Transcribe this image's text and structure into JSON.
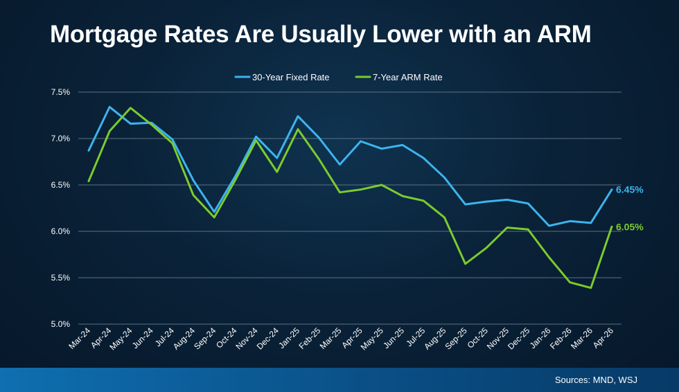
{
  "title": "Mortgage Rates Are Usually Lower with an ARM",
  "source": "Sources: MND, WSJ",
  "colors": {
    "fixed": "#3cb4ee",
    "arm": "#7ccb2d",
    "grid": "#5d7184",
    "text": "#ffffff"
  },
  "chart_data": {
    "type": "line",
    "title": "Mortgage Rates Are Usually Lower with an ARM",
    "xlabel": "",
    "ylabel": "",
    "ylim": [
      5.0,
      7.5
    ],
    "yticks": [
      "5.0%",
      "5.5%",
      "6.0%",
      "6.5%",
      "7.0%",
      "7.5%"
    ],
    "legend_position": "top-center",
    "grid": true,
    "categories": [
      "Mar-24",
      "Apr-24",
      "May-24",
      "Jun-24",
      "Jul-24",
      "Aug-24",
      "Sep-24",
      "Oct-24",
      "Nov-24",
      "Dec-24",
      "Jan-25",
      "Feb-25",
      "Mar-25",
      "Apr-25",
      "May-25",
      "Jun-25",
      "Jul-25",
      "Aug-25",
      "Sep-25",
      "Oct-25",
      "Nov-25",
      "Dec-25",
      "Jan-26",
      "Feb-26",
      "Mar-26",
      "Apr-26"
    ],
    "series": [
      {
        "name": "30-Year Fixed Rate",
        "color": "#3cb4ee",
        "end_label": "6.45%",
        "values": [
          6.87,
          7.34,
          7.16,
          7.17,
          6.99,
          6.55,
          6.21,
          6.59,
          7.02,
          6.79,
          7.24,
          7.01,
          6.72,
          6.97,
          6.89,
          6.93,
          6.79,
          6.58,
          6.29,
          6.32,
          6.34,
          6.3,
          6.06,
          6.11,
          6.09,
          6.45
        ]
      },
      {
        "name": "7-Year ARM Rate",
        "color": "#7ccb2d",
        "end_label": "6.05%",
        "values": [
          6.54,
          7.08,
          7.33,
          7.15,
          6.95,
          6.39,
          6.15,
          6.55,
          6.98,
          6.64,
          7.1,
          6.78,
          6.42,
          6.45,
          6.5,
          6.38,
          6.33,
          6.15,
          5.65,
          5.82,
          6.04,
          6.02,
          5.72,
          5.45,
          5.39,
          6.05
        ]
      }
    ]
  }
}
